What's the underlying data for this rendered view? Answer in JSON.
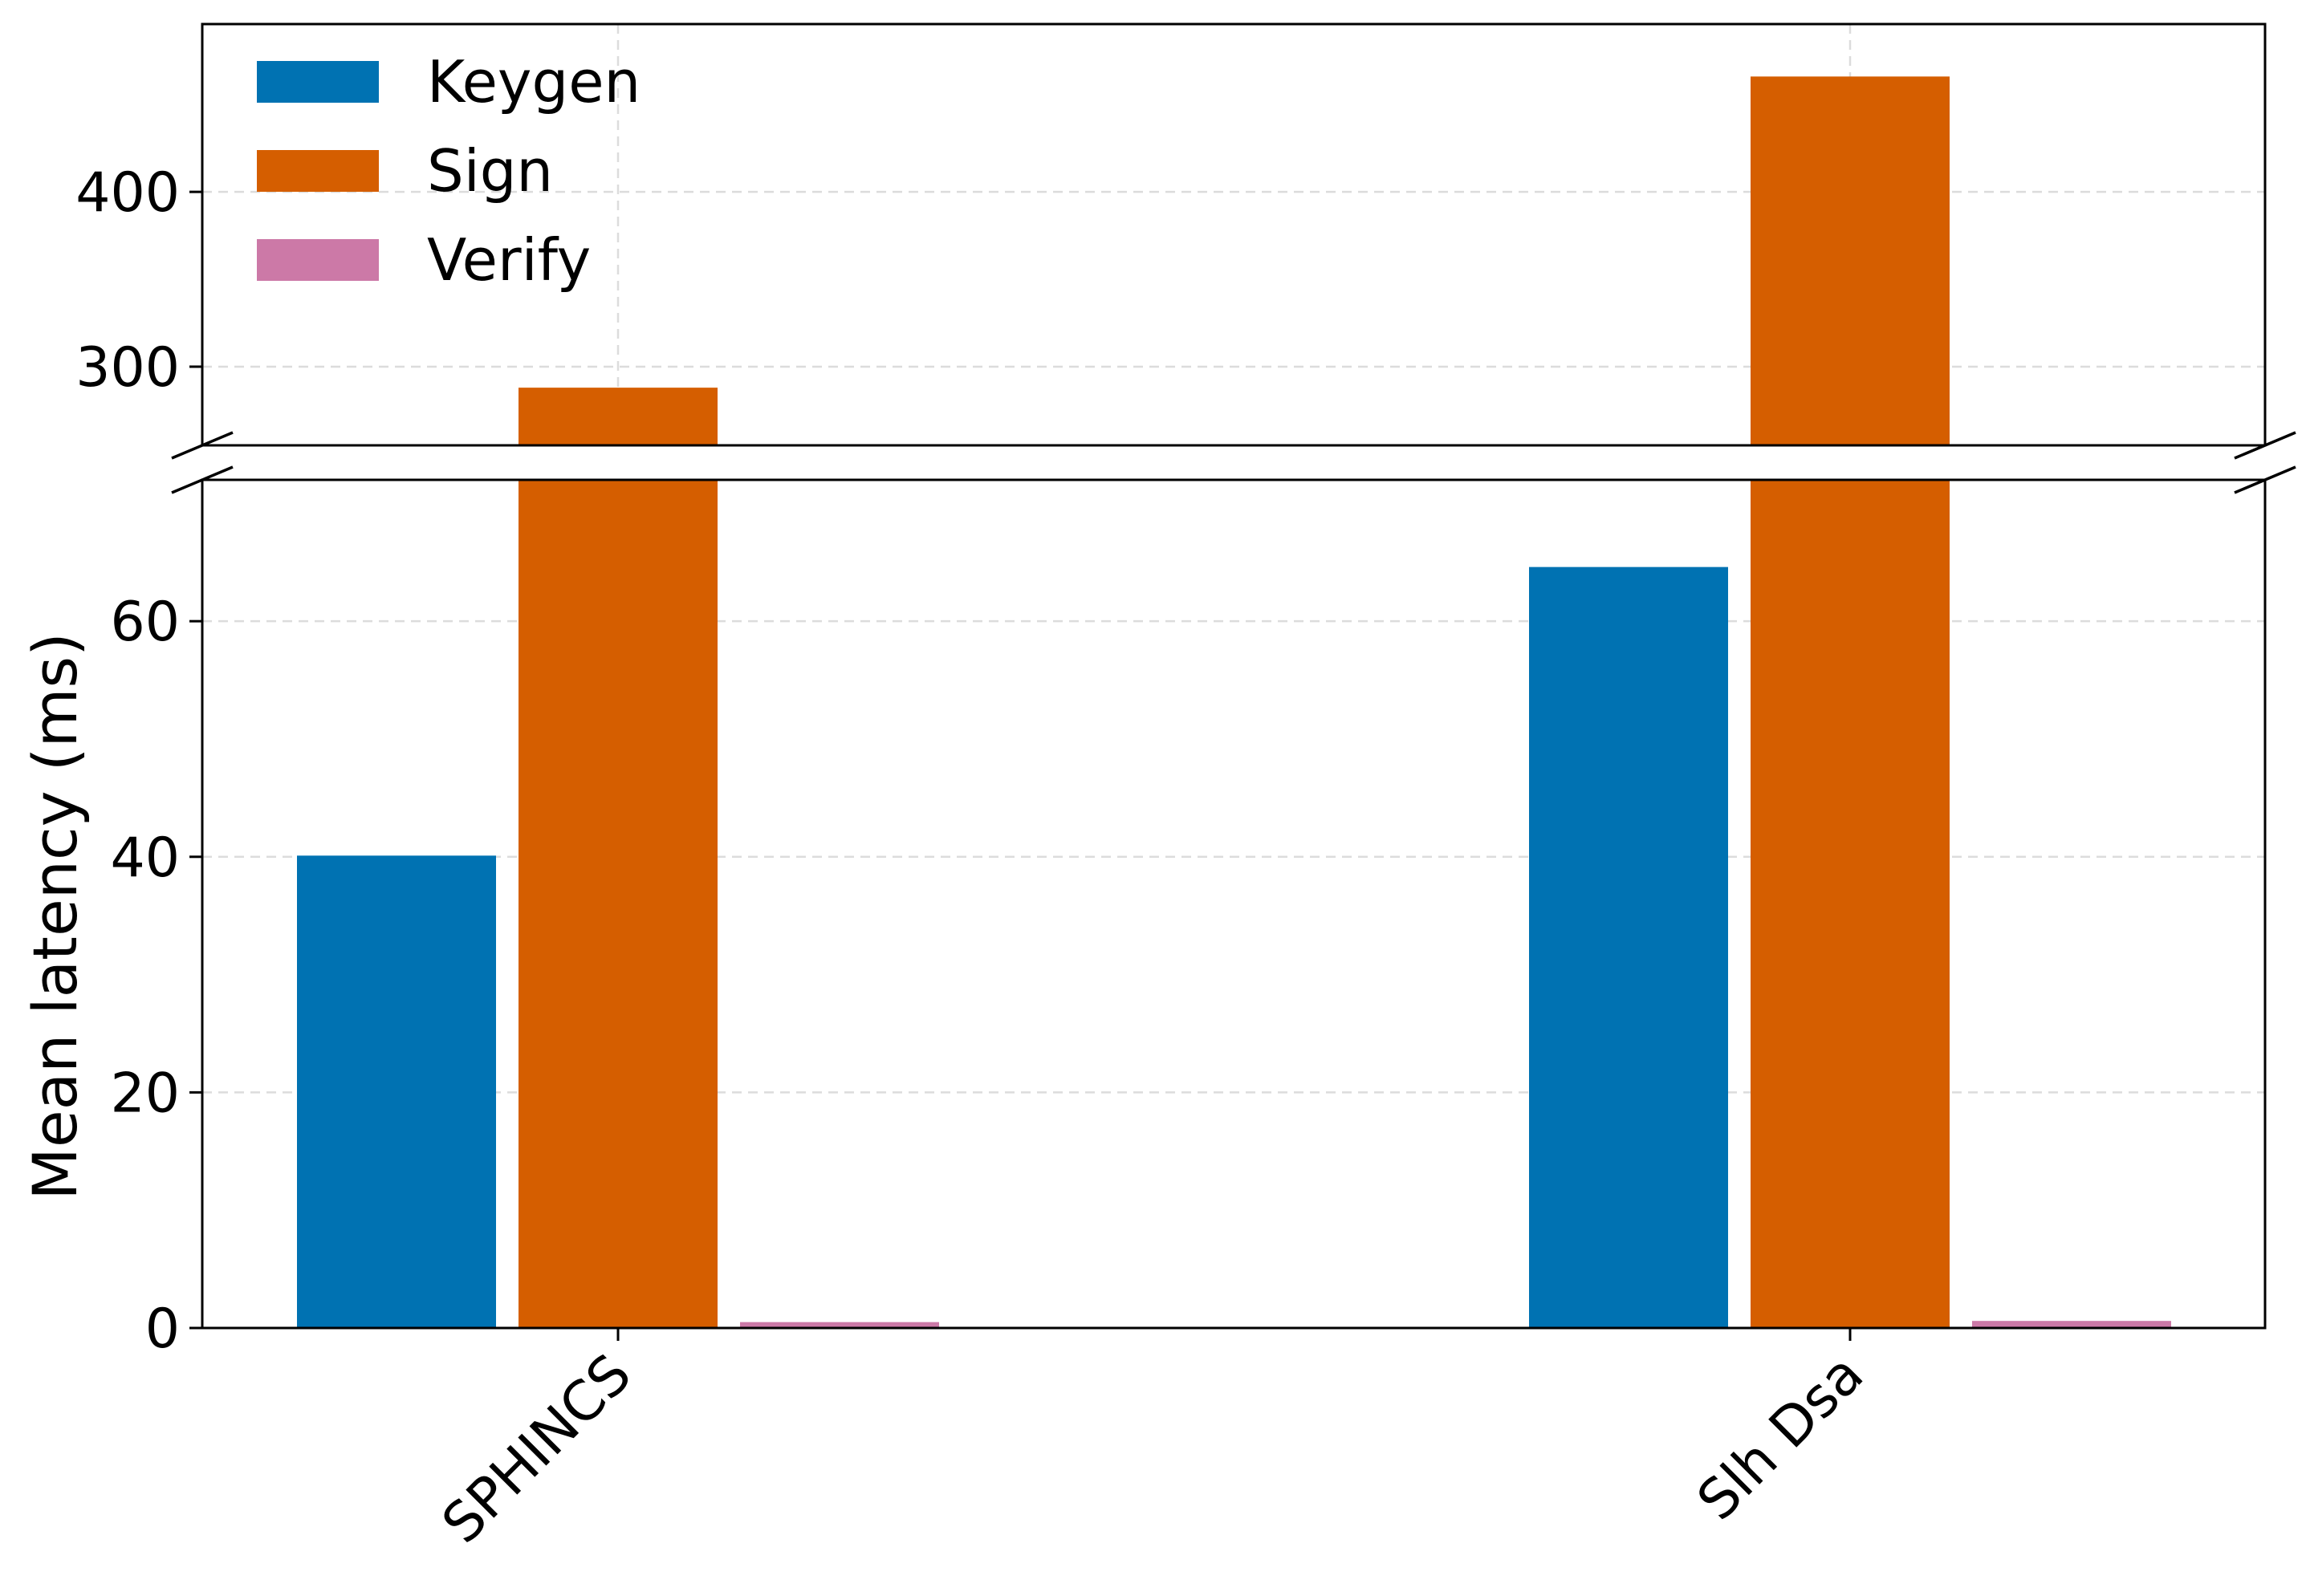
{
  "chart_data": {
    "type": "bar",
    "ylabel": "Mean latency (ms)",
    "xlabel": "",
    "categories": [
      "SPHINCS",
      "Slh Dsa"
    ],
    "series": [
      {
        "name": "Keygen",
        "color": "#0072b2",
        "values": [
          40.1,
          64.6
        ]
      },
      {
        "name": "Sign",
        "color": "#d55e00",
        "values": [
          288,
          466
        ]
      },
      {
        "name": "Verify",
        "color": "#cc79a7",
        "values": [
          0.5,
          0.6
        ]
      }
    ],
    "broken_axis": true,
    "lower_ylim": [
      0,
      72
    ],
    "upper_ylim": [
      255,
      496
    ],
    "lower_yticks": [
      0,
      20,
      40,
      60
    ],
    "upper_yticks": [
      300,
      400
    ],
    "grid": true,
    "legend_position": "top-left"
  }
}
